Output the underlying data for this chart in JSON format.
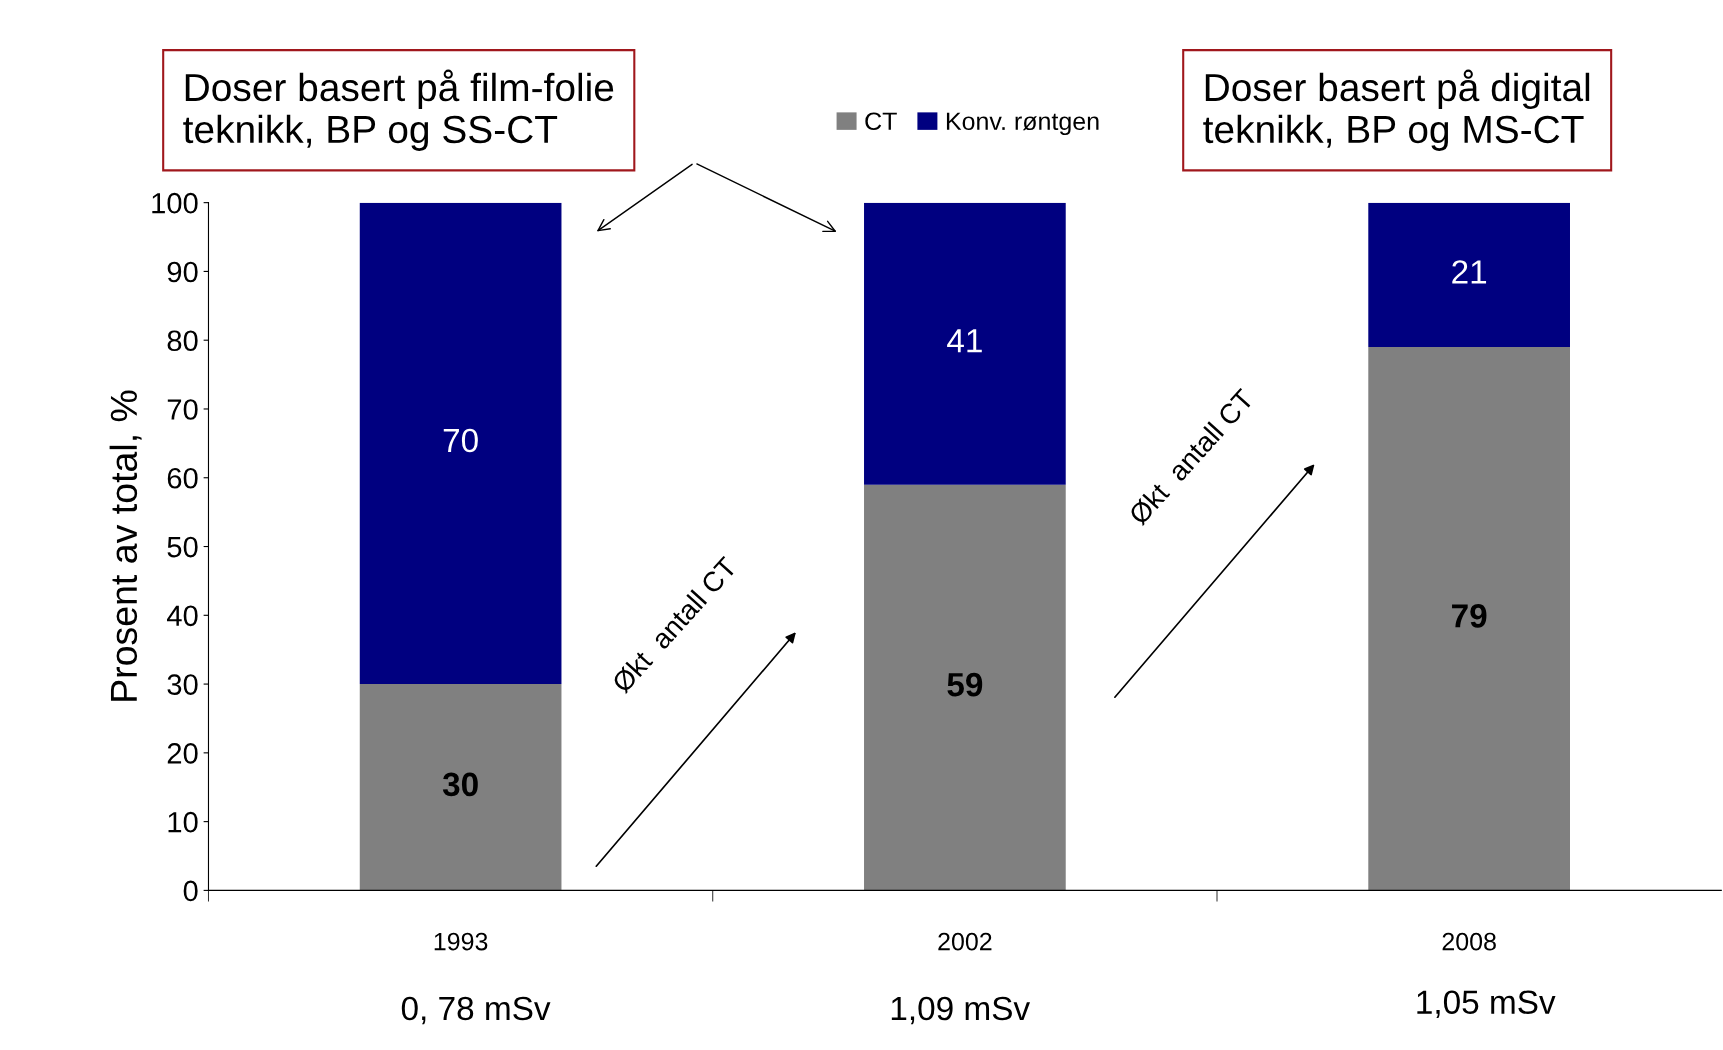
{
  "chart_data": {
    "type": "bar",
    "stacked": true,
    "ylabel": "Prosent av total, %",
    "categories": [
      "1993",
      "2002",
      "2008"
    ],
    "series": [
      {
        "name": "CT",
        "color": "#808080",
        "values": [
          30,
          59,
          79
        ]
      },
      {
        "name": "Konv. røntgen",
        "color": "#000080",
        "values": [
          70,
          41,
          21
        ]
      }
    ],
    "ylim": [
      0,
      100
    ],
    "yticks": [
      0,
      10,
      20,
      30,
      40,
      50,
      60,
      70,
      80,
      90,
      100
    ],
    "grid": false,
    "legend": "top",
    "data_labels": true,
    "annotations": [
      "Doser basert på film-folie\nteknikk, BP og SS-CT",
      "Doser basert på digital\nteknikk, BP og MS-CT",
      "Økt  antall CT",
      "Økt  antall CT",
      "0, 78 mSv",
      "1,09 mSv",
      "1,05 mSv"
    ]
  }
}
